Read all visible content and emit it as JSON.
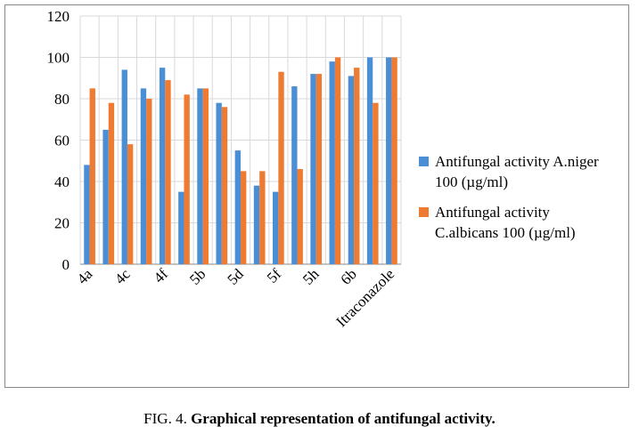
{
  "chart_data": {
    "type": "bar",
    "categories": [
      "4a",
      null,
      "4c",
      null,
      "4f",
      null,
      "5b",
      null,
      "5d",
      null,
      "5f",
      null,
      "5h",
      null,
      "6b",
      null,
      "Itraconazole"
    ],
    "series": [
      {
        "name": "Antifungal activity A.niger 100 (µg/ml)",
        "color": "#4a8fd6",
        "values": [
          48,
          65,
          94,
          85,
          95,
          35,
          85,
          78,
          55,
          38,
          35,
          86,
          92,
          98,
          91,
          100,
          100
        ]
      },
      {
        "name": "Antifungal activity C.albicans 100 (µg/ml)",
        "color": "#ef7a32",
        "values": [
          85,
          78,
          58,
          80,
          89,
          82,
          85,
          76,
          45,
          45,
          93,
          46,
          92,
          100,
          95,
          78,
          100
        ]
      }
    ],
    "ylim": [
      0,
      120
    ],
    "yticks": [
      0,
      20,
      40,
      60,
      80,
      100,
      120
    ],
    "grid": true,
    "legend": "right"
  },
  "caption": {
    "label": "FIG. 4.",
    "text": "Graphical representation of antifungal activity."
  }
}
